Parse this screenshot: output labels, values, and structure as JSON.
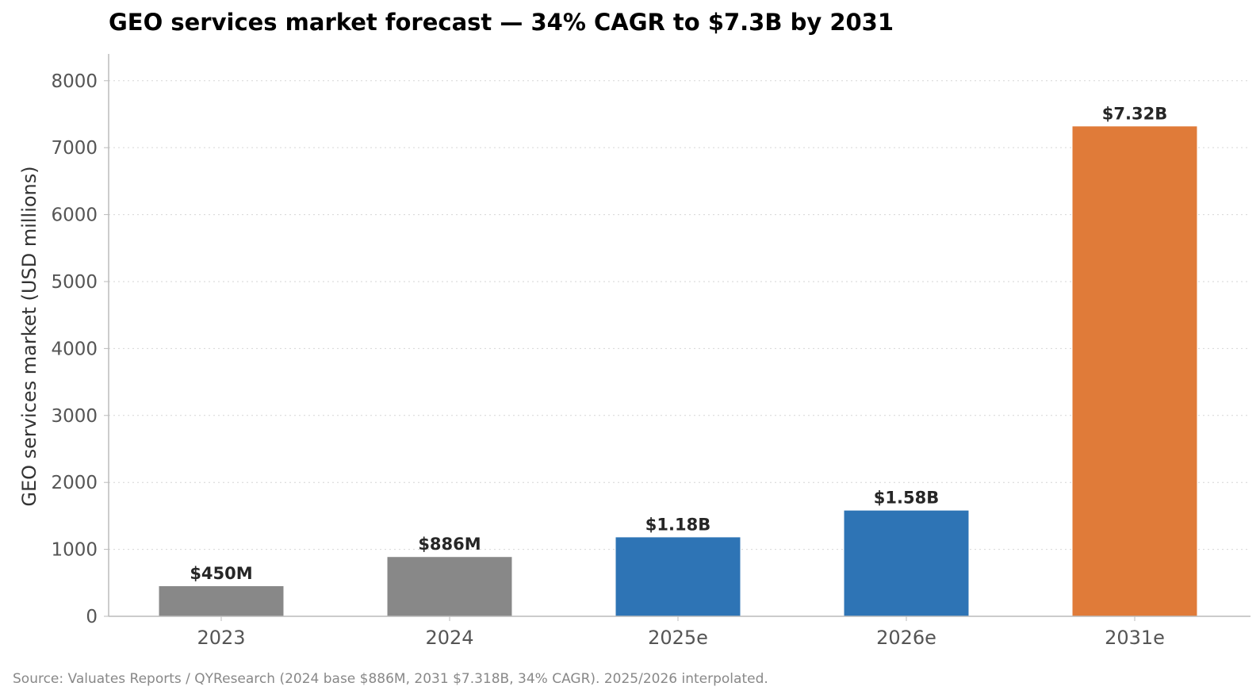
{
  "chart_data": {
    "type": "bar",
    "title": "GEO services market forecast — 34% CAGR to $7.3B by 2031",
    "ylabel": "GEO services market (USD millions)",
    "xlabel": "",
    "categories": [
      "2023",
      "2024",
      "2025e",
      "2026e",
      "2031e"
    ],
    "values": [
      450,
      886,
      1180,
      1580,
      7318
    ],
    "data_labels": [
      "$450M",
      "$886M",
      "$1.18B",
      "$1.58B",
      "$7.32B"
    ],
    "bar_colors": [
      "#888888",
      "#888888",
      "#2e74b5",
      "#2e74b5",
      "#e07b39"
    ],
    "ylim": [
      0,
      8400
    ],
    "yticks": [
      0,
      1000,
      2000,
      3000,
      4000,
      5000,
      6000,
      7000,
      8000
    ],
    "grid": "horizontal dotted",
    "legend": "none"
  },
  "source_note": "Source: Valuates Reports / QYResearch (2024 base $886M, 2031 $7.318B, 34% CAGR). 2025/2026 interpolated."
}
